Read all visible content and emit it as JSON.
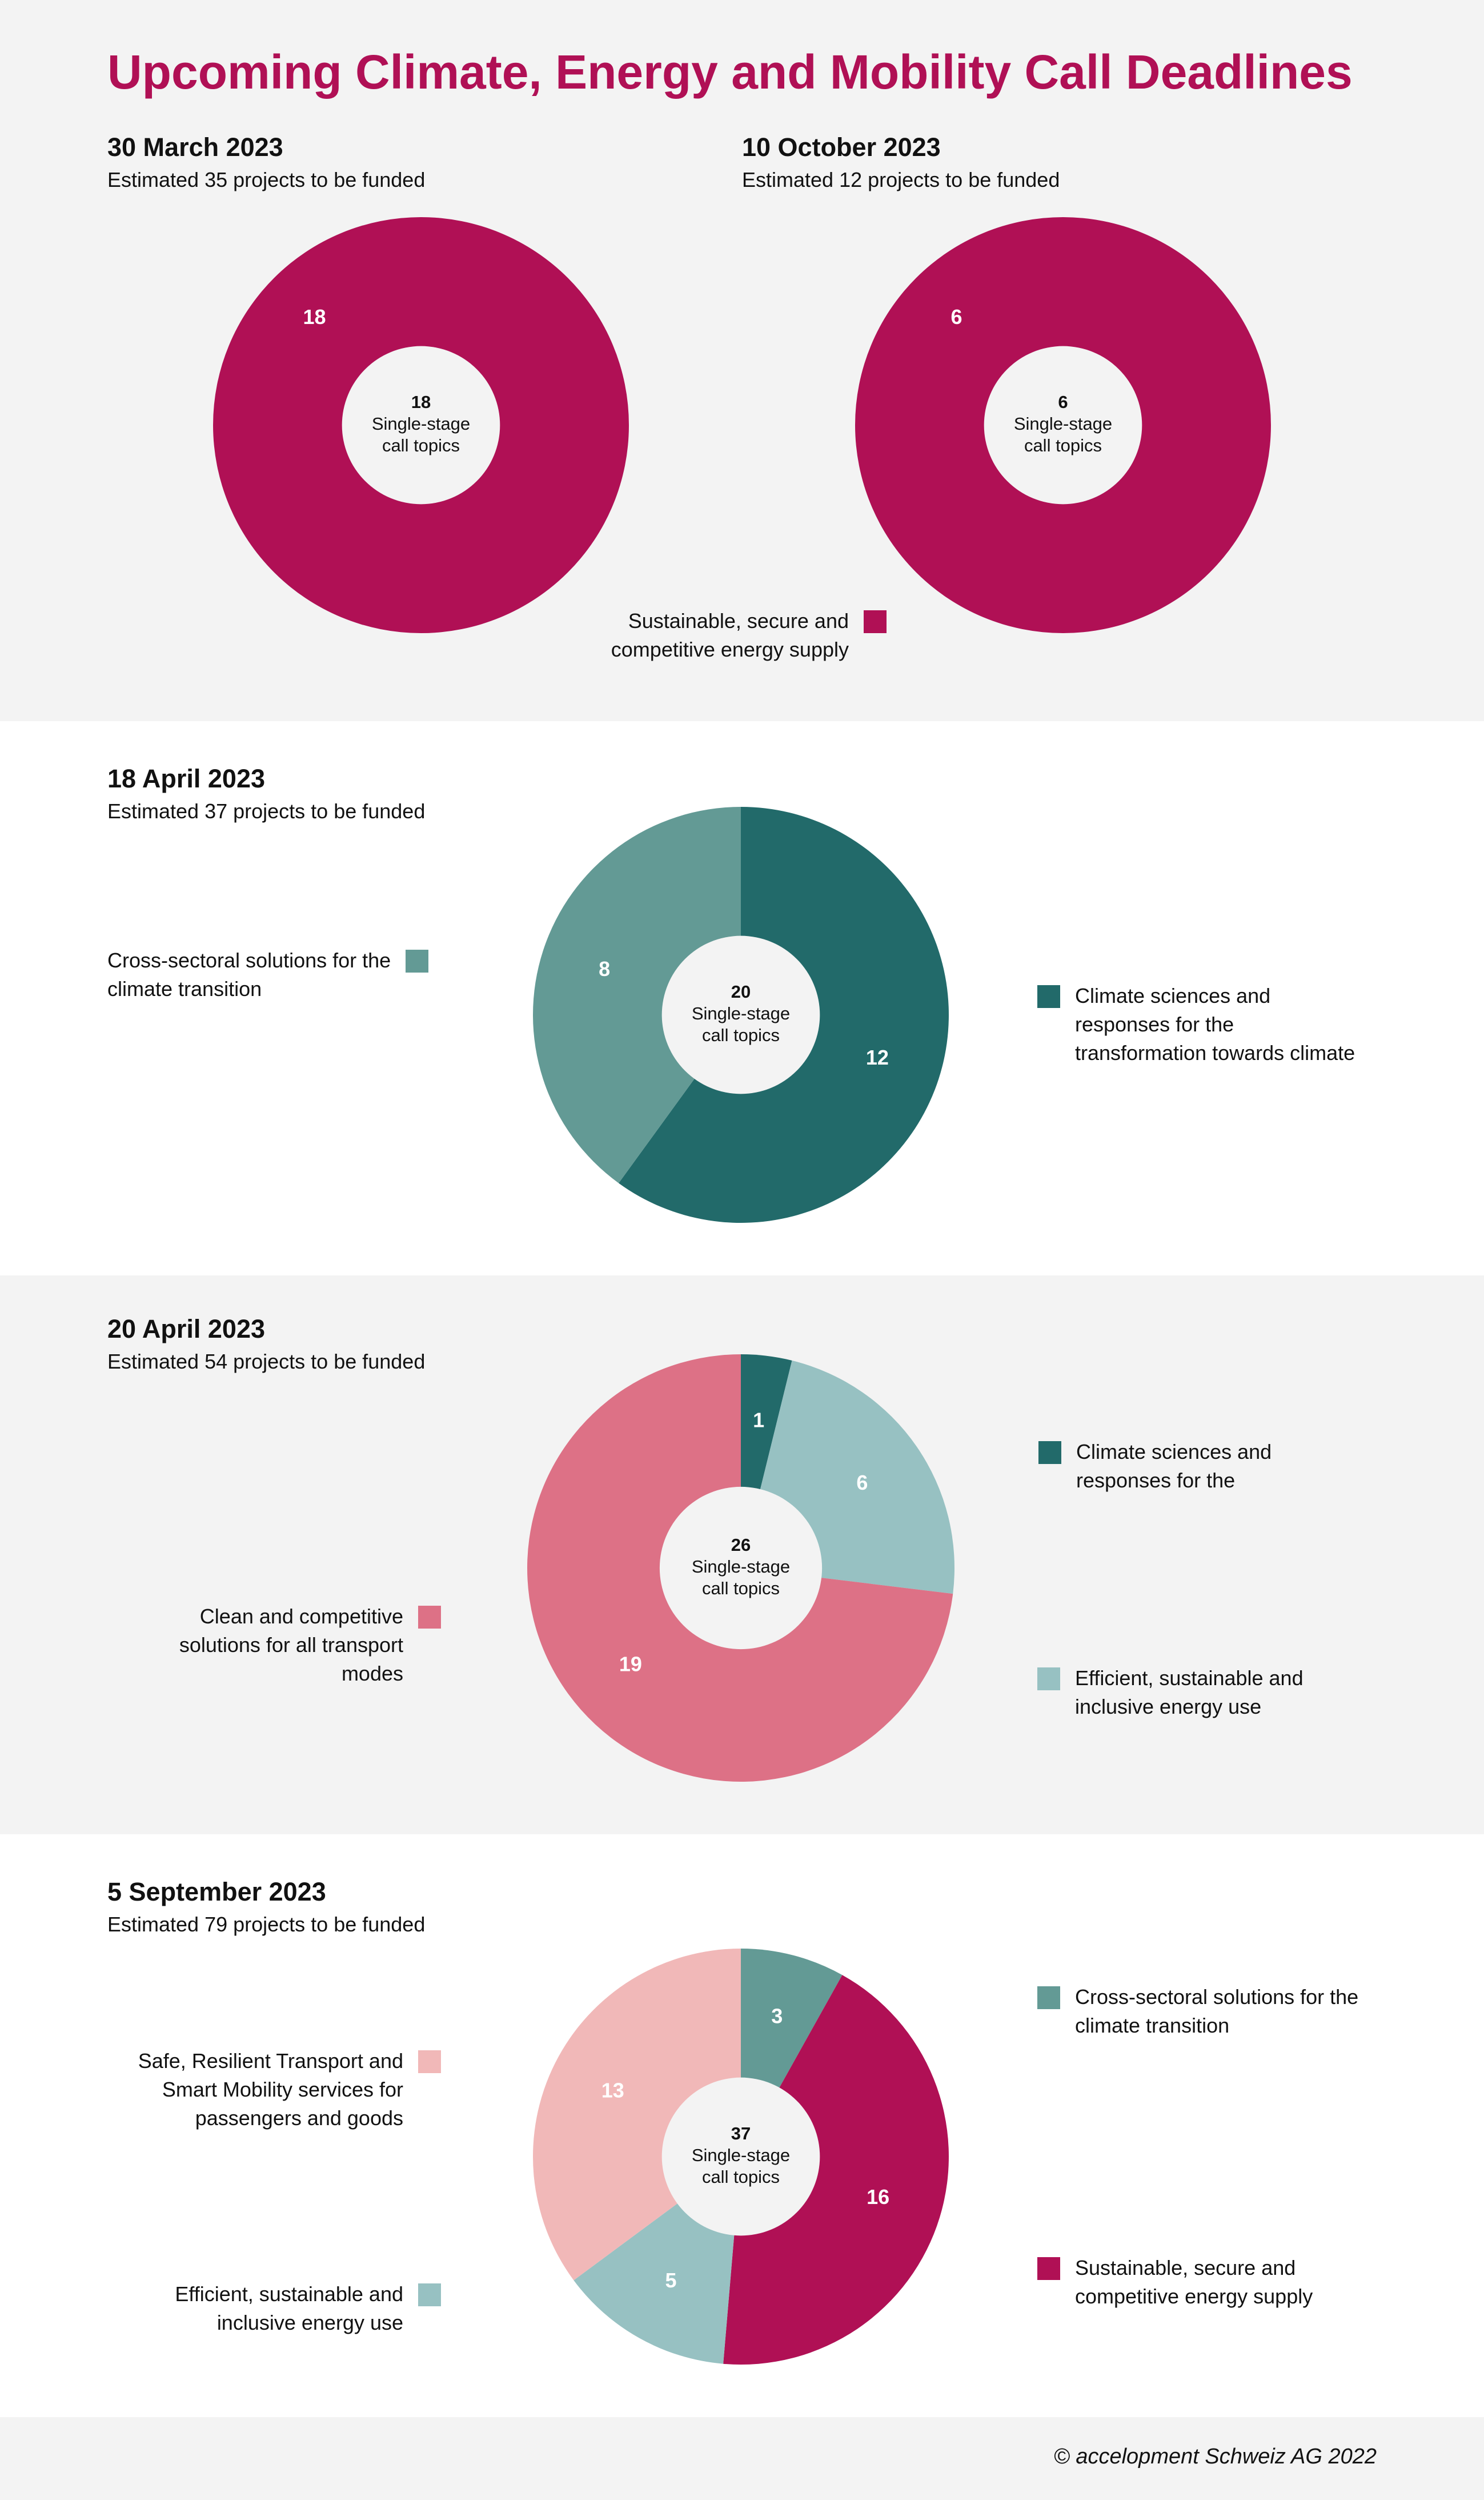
{
  "title": "Upcoming Climate, Energy and Mobility Call Deadlines",
  "footer": "© accelopment Schweiz AG 2022",
  "colors": {
    "energy_supply": "#b01055",
    "cross_sectoral": "#639a95",
    "climate_sciences": "#226a6a",
    "transport": "#dd7186",
    "energy_use": "#97c1c2",
    "safe_transport": "#f1b8b8"
  },
  "chart_data": [
    {
      "type": "pie",
      "date": "30 March 2023",
      "subtitle": "Estimated 35 projects to be funded",
      "center_value": "18",
      "center_label_1": "Single-stage",
      "center_label_2": "call topics",
      "slices": [
        {
          "label": "Sustainable, secure and competitive energy supply",
          "value": 18,
          "color": "#b01055"
        }
      ]
    },
    {
      "type": "pie",
      "date": "10 October 2023",
      "subtitle": "Estimated 12  projects to be funded",
      "center_value": "6",
      "center_label_1": "Single-stage",
      "center_label_2": "call topics",
      "slices": [
        {
          "label": "Sustainable, secure and competitive energy supply",
          "value": 6,
          "color": "#b01055"
        }
      ]
    },
    {
      "type": "pie",
      "date": "18 April 2023",
      "subtitle": "Estimated 37 projects to be funded",
      "center_value": "20",
      "center_label_1": "Single-stage",
      "center_label_2": "call topics",
      "slices": [
        {
          "label": "Climate sciences and responses for the transformation towards climate",
          "value": 12,
          "color": "#226a6a"
        },
        {
          "label": "Cross-sectoral solutions for the climate transition",
          "value": 8,
          "color": "#639a95"
        }
      ]
    },
    {
      "type": "pie",
      "date": "20 April 2023",
      "subtitle": "Estimated 54 projects to be funded",
      "center_value": "26",
      "center_label_1": "Single-stage",
      "center_label_2": "call topics",
      "slices": [
        {
          "label": "Climate sciences and responses for the",
          "value": 1,
          "color": "#226a6a"
        },
        {
          "label": "Efficient, sustainable and inclusive energy use",
          "value": 6,
          "color": "#97c1c2"
        },
        {
          "label": "Clean and competitive solutions for all transport modes",
          "value": 19,
          "color": "#dd7186"
        }
      ]
    },
    {
      "type": "pie",
      "date": "5 September 2023",
      "subtitle": "Estimated 79 projects to be funded",
      "center_value": "37",
      "center_label_1": "Single-stage",
      "center_label_2": "call topics",
      "slices": [
        {
          "label": "Cross-sectoral solutions for the climate transition",
          "value": 3,
          "color": "#639a95"
        },
        {
          "label": "Sustainable, secure and competitive energy supply",
          "value": 16,
          "color": "#b01055"
        },
        {
          "label": "Efficient, sustainable and inclusive energy use",
          "value": 5,
          "color": "#97c1c2"
        },
        {
          "label": "Safe, Resilient Transport and Smart Mobility services for passengers and goods",
          "value": 13,
          "color": "#f1b8b8"
        }
      ]
    }
  ],
  "legends": {
    "s1": [
      "Sustainable, secure and",
      "competitive energy supply"
    ],
    "s2_left": [
      "Cross-sectoral solutions for the",
      "climate transition"
    ],
    "s2_right": [
      "Climate sciences and",
      "responses for the",
      "transformation towards climate"
    ],
    "s3_right_top": [
      "Climate sciences and",
      "responses for the"
    ],
    "s3_left": [
      "Clean and competitive",
      "solutions for all transport",
      "modes"
    ],
    "s3_right_bottom": [
      "Efficient, sustainable and",
      "inclusive energy use"
    ],
    "s4_left_top": [
      "Safe, Resilient Transport and",
      "Smart Mobility services for",
      "passengers and goods"
    ],
    "s4_right_top": [
      "Cross-sectoral solutions for the",
      "climate transition"
    ],
    "s4_left_bottom": [
      "Efficient, sustainable and",
      "inclusive energy use"
    ],
    "s4_right_bottom": [
      "Sustainable, secure and",
      "competitive energy supply"
    ]
  }
}
